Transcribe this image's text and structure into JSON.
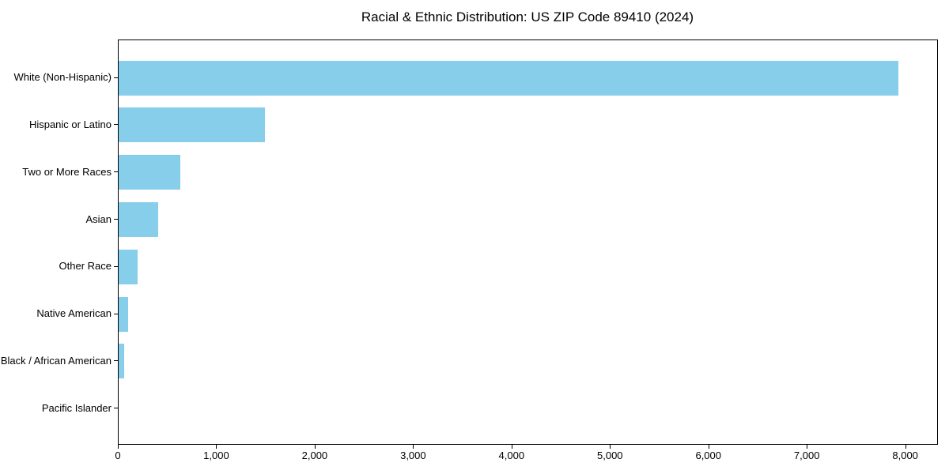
{
  "title": "Racial & Ethnic Distribution: US ZIP Code 89410 (2024)",
  "chart_data": {
    "type": "bar",
    "orientation": "horizontal",
    "title": "Racial & Ethnic Distribution: US ZIP Code 89410 (2024)",
    "xlabel": "",
    "ylabel": "",
    "categories": [
      "White (Non-Hispanic)",
      "Hispanic or Latino",
      "Two or More Races",
      "Asian",
      "Other Race",
      "Native American",
      "Black / African American",
      "Pacific Islander"
    ],
    "values": [
      7920,
      1490,
      630,
      405,
      190,
      100,
      55,
      0
    ],
    "xlim": [
      0,
      8316
    ],
    "x_ticks": [
      0,
      1000,
      2000,
      3000,
      4000,
      5000,
      6000,
      7000,
      8000
    ],
    "x_tick_labels": [
      "0",
      "1,000",
      "2,000",
      "3,000",
      "4,000",
      "5,000",
      "6,000",
      "7,000",
      "8,000"
    ],
    "bar_color": "#87CEEB",
    "axis_color": "#000000",
    "text_color": "#000000",
    "background_color": "#ffffff",
    "grid": false,
    "legend": null
  }
}
